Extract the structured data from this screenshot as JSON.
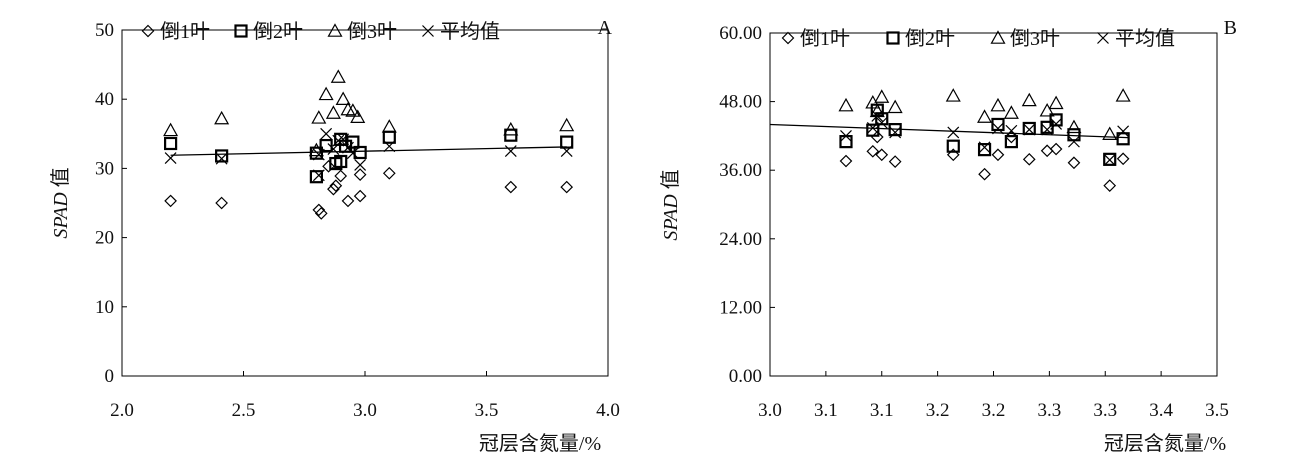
{
  "chart_data": [
    {
      "panel": "A",
      "type": "scatter",
      "xlabel": "冠层含氮量/%",
      "ylabel_main": "SPAD",
      "ylabel_suffix": "值",
      "xlim": [
        2.0,
        4.0
      ],
      "ylim": [
        0,
        50
      ],
      "xticks": [
        "2.0",
        "2.5",
        "3.0",
        "3.5",
        "4.0"
      ],
      "yticks": [
        "0",
        "10",
        "20",
        "30",
        "40",
        "50"
      ],
      "grid": false,
      "legend_position": "top",
      "series": [
        {
          "name": "倒1叶",
          "marker": "diamond",
          "points": [
            [
              2.2,
              25.3
            ],
            [
              2.41,
              25.0
            ],
            [
              2.81,
              24.0
            ],
            [
              2.82,
              23.5
            ],
            [
              2.88,
              27.5
            ],
            [
              2.87,
              27.0
            ],
            [
              2.9,
              28.9
            ],
            [
              2.93,
              25.3
            ],
            [
              2.98,
              26.0
            ],
            [
              2.98,
              29.1
            ],
            [
              3.1,
              29.3
            ],
            [
              3.6,
              27.3
            ],
            [
              3.83,
              27.3
            ],
            [
              2.85,
              30.3
            ]
          ]
        },
        {
          "name": "倒2叶",
          "marker": "square",
          "points": [
            [
              2.2,
              33.6
            ],
            [
              2.41,
              31.8
            ],
            [
              2.8,
              28.8
            ],
            [
              2.8,
              32.2
            ],
            [
              2.84,
              33.3
            ],
            [
              2.88,
              30.7
            ],
            [
              2.9,
              31.0
            ],
            [
              2.92,
              33.2
            ],
            [
              2.95,
              33.8
            ],
            [
              2.98,
              32.3
            ],
            [
              3.1,
              34.5
            ],
            [
              3.6,
              34.8
            ],
            [
              3.83,
              33.8
            ],
            [
              2.9,
              34.2
            ]
          ]
        },
        {
          "name": "倒3叶",
          "marker": "triangle",
          "points": [
            [
              2.2,
              35.5
            ],
            [
              2.41,
              37.2
            ],
            [
              2.81,
              37.3
            ],
            [
              2.84,
              40.7
            ],
            [
              2.87,
              38.0
            ],
            [
              2.89,
              43.2
            ],
            [
              2.91,
              40.0
            ],
            [
              2.93,
              38.5
            ],
            [
              2.95,
              38.3
            ],
            [
              2.97,
              37.4
            ],
            [
              3.1,
              36.0
            ],
            [
              3.6,
              35.6
            ],
            [
              3.83,
              36.2
            ],
            [
              2.8,
              32.6
            ]
          ]
        },
        {
          "name": "平均值",
          "marker": "x",
          "points": [
            [
              2.2,
              31.5
            ],
            [
              2.41,
              31.4
            ],
            [
              2.81,
              29.0
            ],
            [
              2.81,
              32.0
            ],
            [
              2.84,
              35.0
            ],
            [
              2.87,
              32.8
            ],
            [
              2.89,
              34.0
            ],
            [
              2.91,
              34.2
            ],
            [
              2.93,
              33.0
            ],
            [
              2.98,
              30.5
            ],
            [
              3.1,
              33.2
            ],
            [
              3.6,
              32.5
            ],
            [
              3.83,
              32.5
            ],
            [
              2.95,
              32.2
            ]
          ]
        }
      ],
      "trendline": {
        "x": [
          2.2,
          3.83
        ],
        "y": [
          31.9,
          33.1
        ]
      }
    },
    {
      "panel": "B",
      "type": "scatter",
      "xlabel": "冠层含氮量/%",
      "ylabel_main": "SPAD",
      "ylabel_suffix": "值",
      "xlim": [
        3.0,
        3.5
      ],
      "ylim": [
        0,
        60
      ],
      "xticks": [
        "3.0",
        "3.1",
        "3.1",
        "3.2",
        "3.2",
        "3.3",
        "3.3",
        "3.4",
        "3.5"
      ],
      "xtick_values": [
        3.0,
        3.0625,
        3.125,
        3.1875,
        3.25,
        3.3125,
        3.375,
        3.4375,
        3.5
      ],
      "yticks": [
        "0.00",
        "12.00",
        "24.00",
        "36.00",
        "48.00",
        "60.00"
      ],
      "grid": false,
      "legend_position": "top",
      "series": [
        {
          "name": "倒1叶",
          "marker": "diamond",
          "points": [
            [
              3.085,
              37.6
            ],
            [
              3.115,
              39.3
            ],
            [
              3.125,
              38.7
            ],
            [
              3.14,
              37.5
            ],
            [
              3.205,
              38.7
            ],
            [
              3.24,
              35.3
            ],
            [
              3.255,
              38.7
            ],
            [
              3.27,
              41.8
            ],
            [
              3.29,
              37.9
            ],
            [
              3.31,
              39.4
            ],
            [
              3.32,
              39.7
            ],
            [
              3.34,
              37.3
            ],
            [
              3.38,
              33.3
            ],
            [
              3.395,
              38.0
            ],
            [
              3.12,
              41.8
            ]
          ]
        },
        {
          "name": "倒2叶",
          "marker": "square",
          "points": [
            [
              3.085,
              41.0
            ],
            [
              3.115,
              43.0
            ],
            [
              3.125,
              45.0
            ],
            [
              3.14,
              43.1
            ],
            [
              3.205,
              40.2
            ],
            [
              3.24,
              39.6
            ],
            [
              3.255,
              44.0
            ],
            [
              3.27,
              41.0
            ],
            [
              3.29,
              43.3
            ],
            [
              3.31,
              43.5
            ],
            [
              3.32,
              44.8
            ],
            [
              3.34,
              42.2
            ],
            [
              3.38,
              37.9
            ],
            [
              3.395,
              41.5
            ],
            [
              3.12,
              46.5
            ]
          ]
        },
        {
          "name": "倒3叶",
          "marker": "triangle",
          "points": [
            [
              3.085,
              47.3
            ],
            [
              3.115,
              47.8
            ],
            [
              3.125,
              48.8
            ],
            [
              3.14,
              47.0
            ],
            [
              3.205,
              49.0
            ],
            [
              3.24,
              45.3
            ],
            [
              3.255,
              47.3
            ],
            [
              3.27,
              46.0
            ],
            [
              3.29,
              48.2
            ],
            [
              3.31,
              46.4
            ],
            [
              3.32,
              47.7
            ],
            [
              3.34,
              43.5
            ],
            [
              3.38,
              42.3
            ],
            [
              3.395,
              49.0
            ],
            [
              3.12,
              46.3
            ]
          ]
        },
        {
          "name": "平均值",
          "marker": "x",
          "points": [
            [
              3.085,
              42.0
            ],
            [
              3.115,
              43.4
            ],
            [
              3.125,
              44.3
            ],
            [
              3.14,
              42.6
            ],
            [
              3.205,
              42.6
            ],
            [
              3.24,
              40.0
            ],
            [
              3.255,
              43.3
            ],
            [
              3.27,
              42.9
            ],
            [
              3.29,
              43.1
            ],
            [
              3.31,
              43.1
            ],
            [
              3.32,
              44.1
            ],
            [
              3.34,
              41.0
            ],
            [
              3.38,
              37.8
            ],
            [
              3.395,
              42.8
            ],
            [
              3.12,
              45.5
            ]
          ]
        }
      ],
      "trendline": {
        "x": [
          3.0,
          3.4
        ],
        "y": [
          44.0,
          41.7
        ]
      }
    }
  ]
}
